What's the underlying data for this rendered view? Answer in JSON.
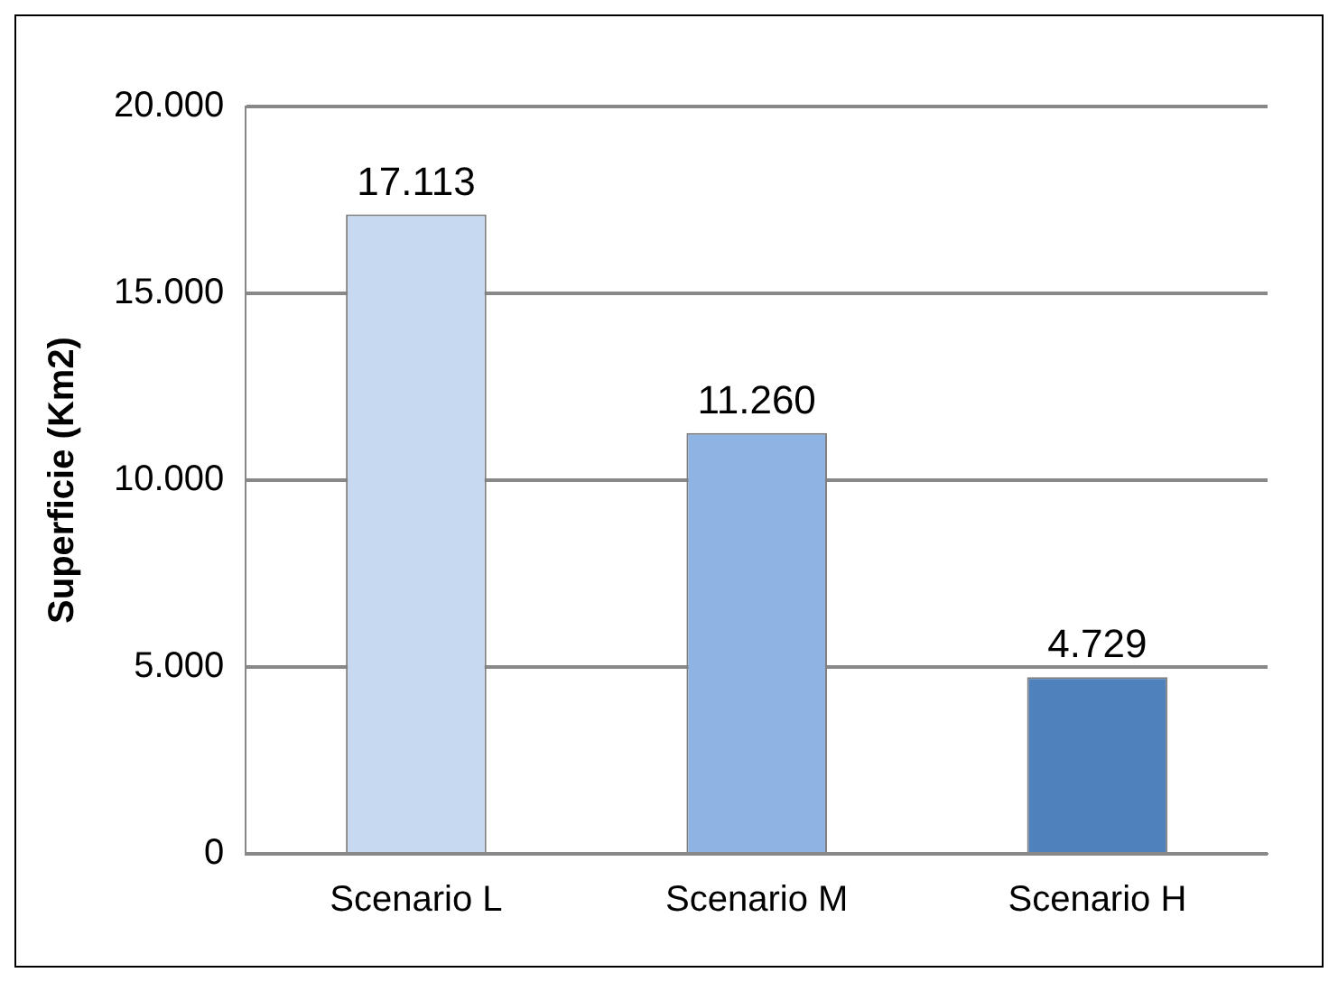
{
  "chart_data": {
    "type": "bar",
    "ylabel": "Superficie (Km2)",
    "categories": [
      "Scenario L",
      "Scenario M",
      "Scenario H"
    ],
    "values": [
      17113,
      11260,
      4729
    ],
    "colors": [
      "#c6d9f1",
      "#8eb4e3",
      "#4f81bd"
    ],
    "value_labels": [
      "17.113",
      "11.260",
      "4.729"
    ],
    "ylim": [
      0,
      20000
    ],
    "yticks": [
      {
        "value": 0,
        "label": "0"
      },
      {
        "value": 5000,
        "label": "5.000"
      },
      {
        "value": 10000,
        "label": "10.000"
      },
      {
        "value": 15000,
        "label": "15.000"
      },
      {
        "value": 20000,
        "label": "20.000"
      }
    ],
    "grid": "y"
  }
}
